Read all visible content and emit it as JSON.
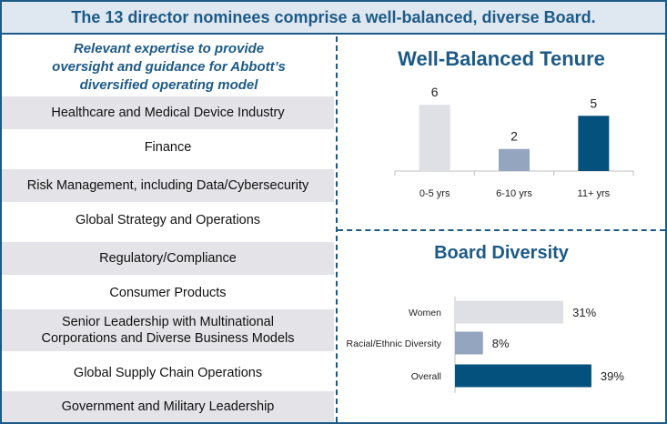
{
  "banner": {
    "title": "The 13 director nominees comprise a well-balanced, diverse Board."
  },
  "expertise": {
    "heading_lines": [
      "Relevant expertise to provide",
      "oversight and guidance for Abbott’s",
      "diversified operating model"
    ],
    "items": [
      [
        "Healthcare and Medical Device Industry"
      ],
      [
        "Finance"
      ],
      [
        "Risk Management, including Data/Cybersecurity"
      ],
      [
        "Global Strategy and Operations"
      ],
      [
        "Regulatory/Compliance"
      ],
      [
        "Consumer Products"
      ],
      [
        "Senior Leadership with Multinational",
        "Corporations and Diverse Business Models"
      ],
      [
        "Global Supply Chain Operations"
      ],
      [
        "Government and Military Leadership"
      ]
    ]
  },
  "colors": {
    "accent": "#1d5a86",
    "light_bar": "#dfe0e6",
    "mid_bar": "#93a5bf",
    "dark_bar": "#04517e",
    "row_shade": "#e3e3e8"
  },
  "chart_data": [
    {
      "type": "bar",
      "title": "Well-Balanced Tenure",
      "categories": [
        "0-5 yrs",
        "6-10 yrs",
        "11+ yrs"
      ],
      "values": [
        6,
        2,
        5
      ],
      "data_labels": [
        "6",
        "2",
        "5"
      ],
      "colors": [
        "#dfe0e6",
        "#93a5bf",
        "#04517e"
      ],
      "ylim": [
        0,
        7
      ],
      "grid": false,
      "xlabel": "",
      "ylabel": ""
    },
    {
      "type": "bar",
      "orientation": "horizontal",
      "title": "Board Diversity",
      "categories": [
        "Women",
        "Racial/Ethnic Diversity",
        "Overall"
      ],
      "values": [
        31,
        8,
        39
      ],
      "data_labels": [
        "31%",
        "8%",
        "39%"
      ],
      "colors": [
        "#dfe0e6",
        "#93a5bf",
        "#04517e"
      ],
      "xlim": [
        0,
        45
      ],
      "grid": false,
      "xlabel": "",
      "ylabel": ""
    }
  ]
}
